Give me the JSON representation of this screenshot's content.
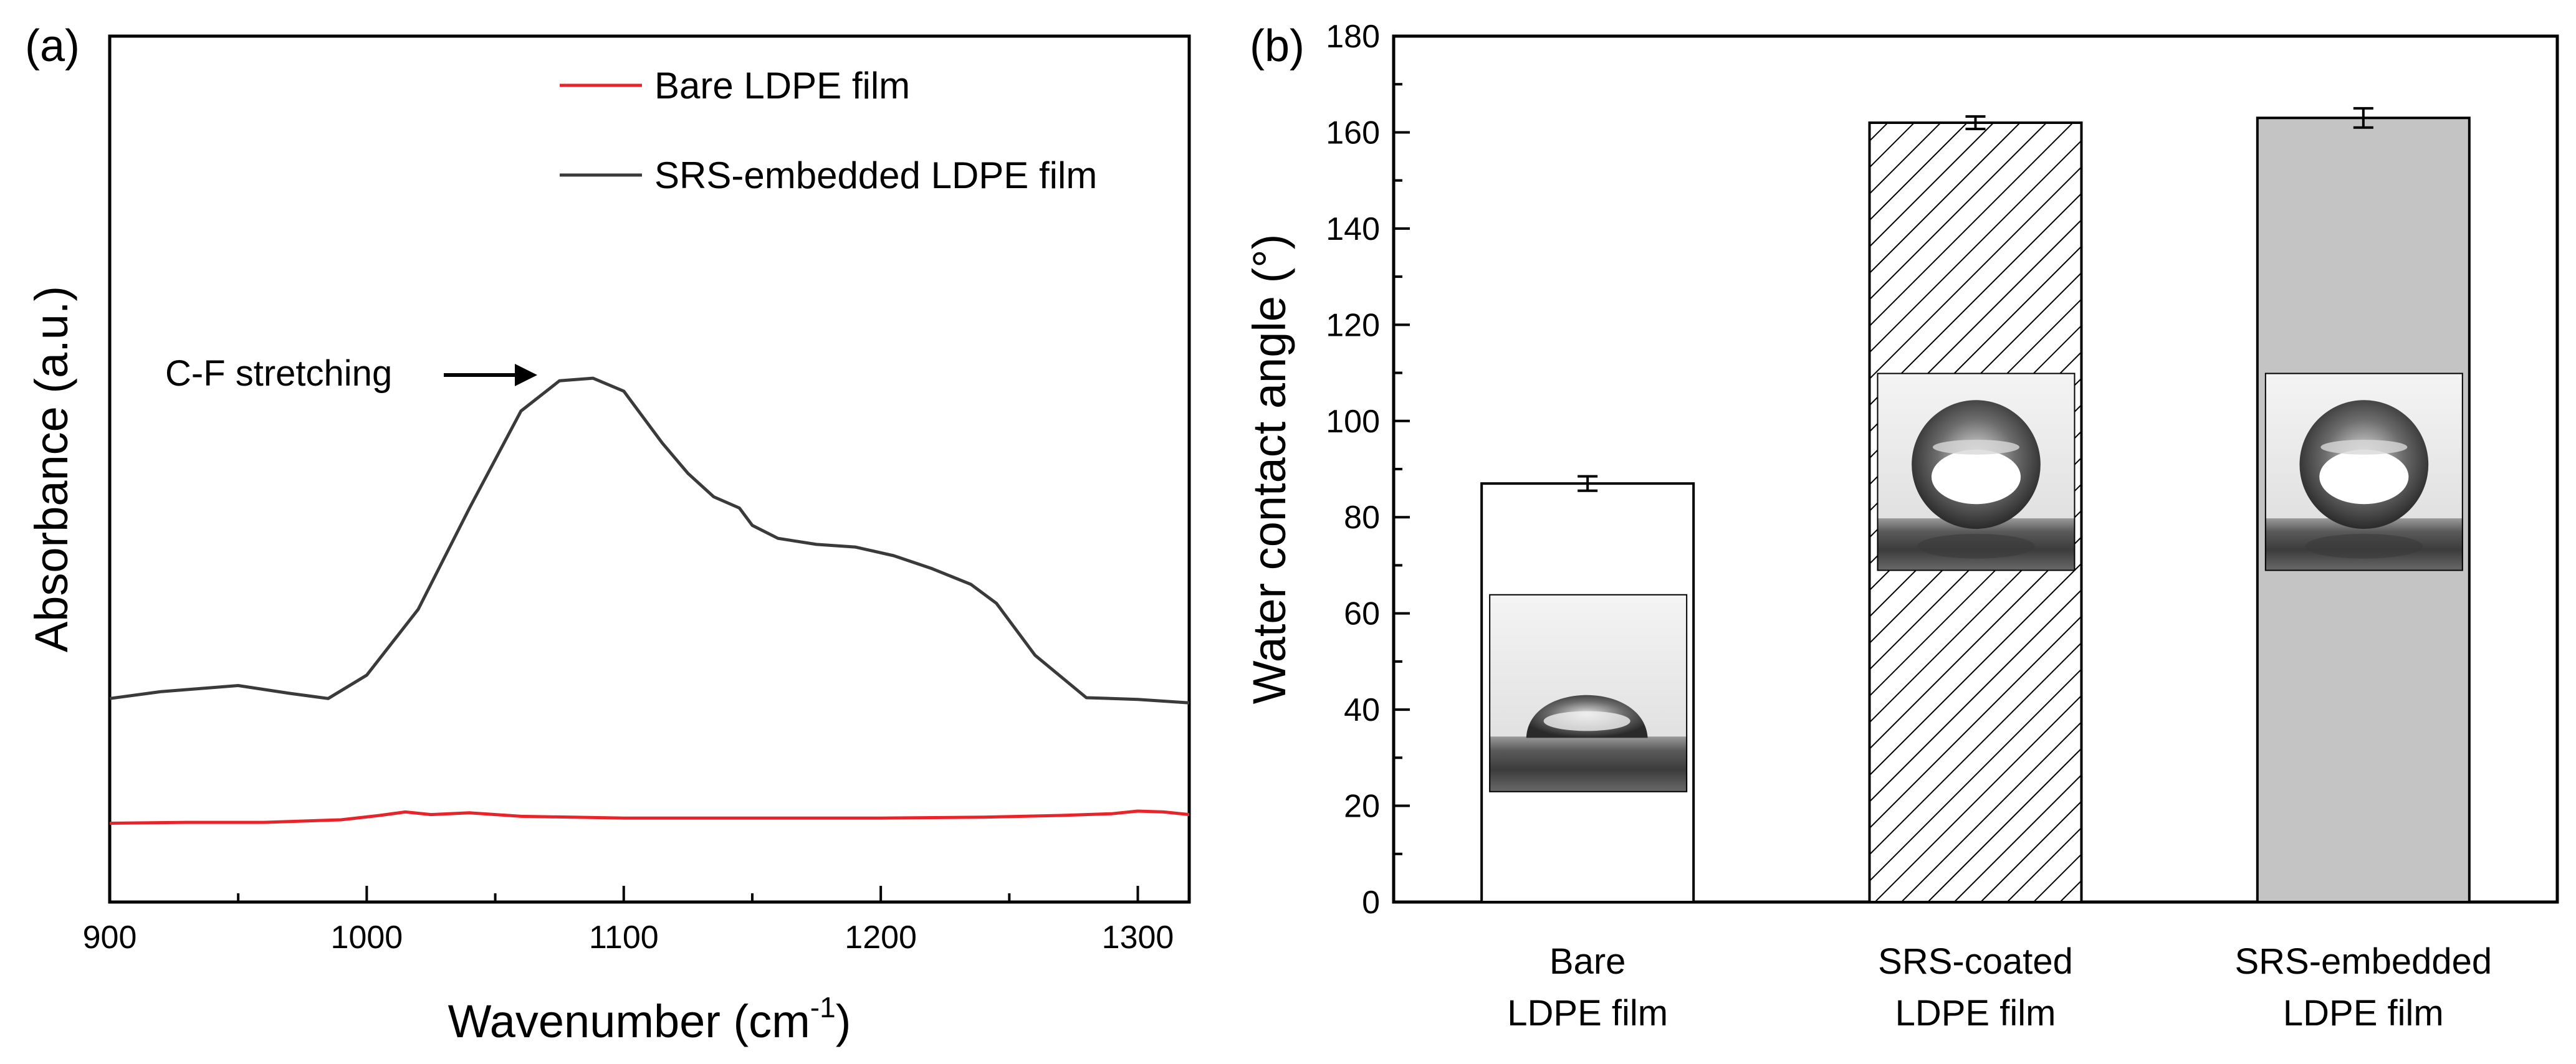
{
  "chart_data": [
    {
      "panel": "(a)",
      "type": "line",
      "xlabel": "Wavenumber (cm",
      "xlabel_sup": "-1",
      "xlabel_close": ")",
      "ylabel": "Absorbance (a.u.)",
      "xlim": [
        900,
        1320
      ],
      "ylim": [
        0,
        1
      ],
      "xticks": [
        900,
        1000,
        1100,
        1200,
        1300
      ],
      "yticks_shown": false,
      "legend_position": "top-right",
      "annotation": {
        "text": "C-F stretching",
        "x": 1088,
        "y": 0.605
      },
      "series": [
        {
          "name": "Bare LDPE film",
          "color": "#e8232a",
          "x": [
            900,
            930,
            960,
            990,
            1005,
            1015,
            1025,
            1040,
            1060,
            1080,
            1100,
            1130,
            1160,
            1200,
            1240,
            1270,
            1290,
            1300,
            1310,
            1320
          ],
          "y": [
            0.091,
            0.092,
            0.092,
            0.095,
            0.1,
            0.104,
            0.101,
            0.103,
            0.099,
            0.098,
            0.097,
            0.097,
            0.097,
            0.097,
            0.098,
            0.1,
            0.102,
            0.105,
            0.104,
            0.101
          ]
        },
        {
          "name": "SRS-embedded LDPE film",
          "color": "#3a3a3a",
          "x": [
            900,
            920,
            950,
            970,
            985,
            1000,
            1020,
            1040,
            1060,
            1075,
            1088,
            1100,
            1115,
            1125,
            1135,
            1145,
            1150,
            1160,
            1175,
            1190,
            1205,
            1220,
            1235,
            1245,
            1260,
            1280,
            1300,
            1320
          ],
          "y": [
            0.235,
            0.243,
            0.25,
            0.241,
            0.235,
            0.262,
            0.338,
            0.455,
            0.567,
            0.602,
            0.605,
            0.59,
            0.53,
            0.495,
            0.468,
            0.455,
            0.435,
            0.42,
            0.413,
            0.41,
            0.4,
            0.385,
            0.367,
            0.345,
            0.285,
            0.236,
            0.234,
            0.23
          ]
        }
      ]
    },
    {
      "panel": "(b)",
      "type": "bar",
      "ylabel": "Water contact angle (°)",
      "ylim": [
        0,
        180
      ],
      "yticks": [
        0,
        20,
        40,
        60,
        80,
        100,
        120,
        140,
        160,
        180
      ],
      "categories": [
        {
          "line1": "Bare",
          "line2": "LDPE film"
        },
        {
          "line1": "SRS-coated",
          "line2": "LDPE film"
        },
        {
          "line1": "SRS-embedded",
          "line2": "LDPE film"
        }
      ],
      "values": [
        87,
        162,
        163
      ],
      "errors": [
        1.5,
        1.3,
        2.0
      ],
      "fills": [
        "white",
        "hatch",
        "#c4c4c4"
      ],
      "insets": [
        "water-droplet-photo-hydrophilic",
        "water-droplet-photo-superhydrophobic",
        "water-droplet-photo-superhydrophobic"
      ]
    }
  ]
}
